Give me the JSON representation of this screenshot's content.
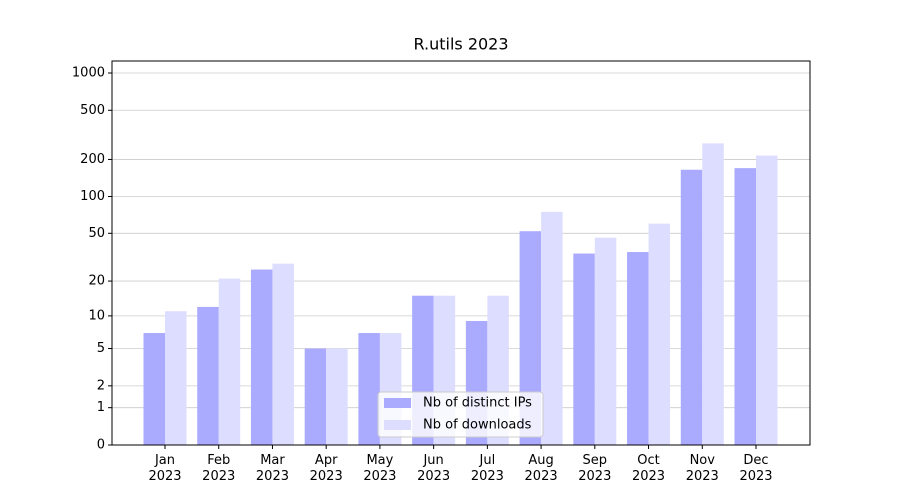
{
  "chart_data": {
    "type": "bar",
    "title": "R.utils 2023",
    "scale": "log1p",
    "categories": [
      "Jan\n2023",
      "Feb\n2023",
      "Mar\n2023",
      "Apr\n2023",
      "May\n2023",
      "Jun\n2023",
      "Jul\n2023",
      "Aug\n2023",
      "Sep\n2023",
      "Oct\n2023",
      "Nov\n2023",
      "Dec\n2023"
    ],
    "series": [
      {
        "name": "Nb of distinct IPs",
        "color": "#aaaaff",
        "values": [
          7,
          12,
          25,
          5,
          7,
          15,
          9,
          52,
          34,
          35,
          165,
          170
        ]
      },
      {
        "name": "Nb of downloads",
        "color": "#ddddff",
        "values": [
          11,
          21,
          28,
          5,
          7,
          15,
          15,
          75,
          46,
          60,
          270,
          215
        ]
      }
    ],
    "ylim": [
      0,
      1250
    ],
    "yticks": [
      0,
      1,
      2,
      5,
      10,
      20,
      50,
      100,
      200,
      500,
      1000
    ],
    "grid": true,
    "legend": "lower center"
  }
}
